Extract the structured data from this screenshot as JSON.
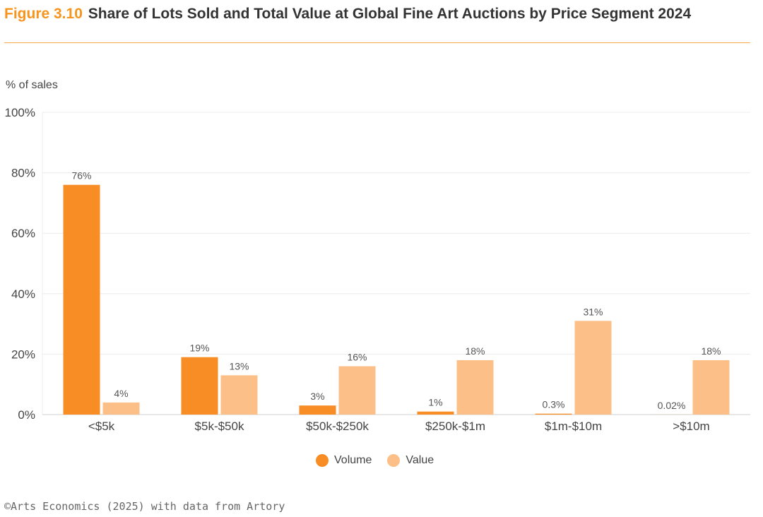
{
  "title": {
    "figure_label": "Figure 3.10",
    "text": "Share of Lots Sold and Total Value at Global Fine Art Auctions by Price Segment 2024"
  },
  "source": "©Arts Economics (2025) with data from Artory",
  "colors": {
    "volume": "#f78d24",
    "value": "#fbbf87",
    "accent": "#f7941d"
  },
  "chart_data": {
    "type": "bar",
    "title": "Share of Lots Sold and Total Value at Global Fine Art Auctions by Price Segment 2024",
    "ylabel": "% of sales",
    "xlabel": "",
    "ylim": [
      0,
      100
    ],
    "yticks": [
      0,
      20,
      40,
      60,
      80,
      100
    ],
    "ytick_labels": [
      "0%",
      "20%",
      "40%",
      "60%",
      "80%",
      "100%"
    ],
    "grid": true,
    "legend_position": "bottom",
    "categories": [
      "<$5k",
      "$5k-$50k",
      "$50k-$250k",
      "$250k-$1m",
      "$1m-$10m",
      ">$10m"
    ],
    "series": [
      {
        "name": "Volume",
        "values": [
          76,
          19,
          3,
          1,
          0.3,
          0.02
        ],
        "labels": [
          "76%",
          "19%",
          "3%",
          "1%",
          "0.3%",
          "0.02%"
        ]
      },
      {
        "name": "Value",
        "values": [
          4,
          13,
          16,
          18,
          31,
          18
        ],
        "labels": [
          "4%",
          "13%",
          "16%",
          "18%",
          "31%",
          "18%"
        ]
      }
    ]
  }
}
